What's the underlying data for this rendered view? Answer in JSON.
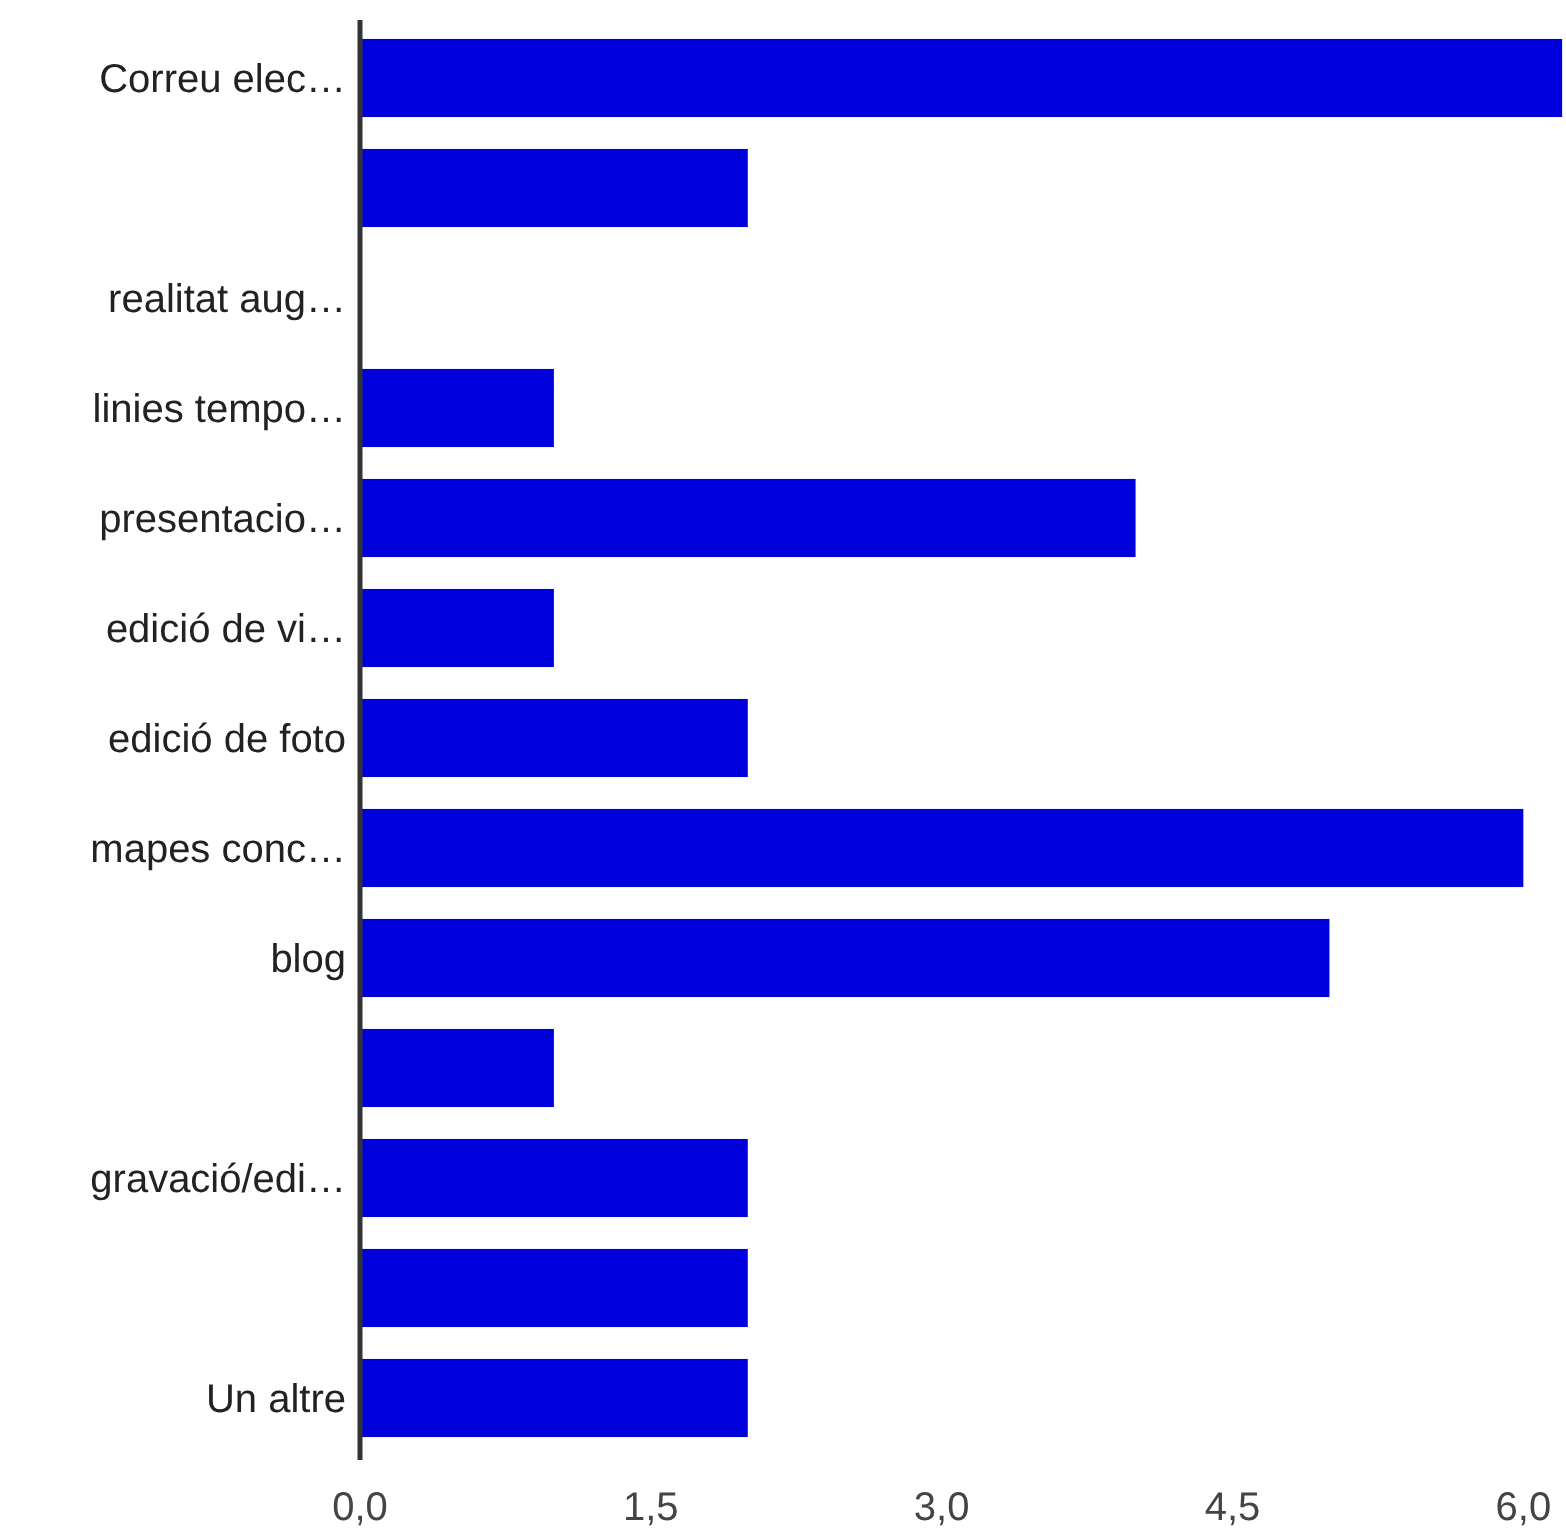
{
  "chart_data": {
    "type": "bar",
    "orientation": "horizontal",
    "categories": [
      "Correu elec…",
      null,
      "realitat aug…",
      "linies tempo…",
      "presentacio…",
      "edició de vi…",
      "edició de foto",
      "mapes conc…",
      "blog",
      null,
      "gravació/edi…",
      null,
      "Un altre"
    ],
    "values": [
      6.2,
      2,
      0,
      1,
      4,
      1,
      2,
      6,
      5,
      1,
      2,
      2,
      2
    ],
    "color": "#0000dd",
    "xlim": [
      0,
      6.22
    ],
    "xticks": [
      {
        "value": 0,
        "label": "0,0"
      },
      {
        "value": 1.5,
        "label": "1,5"
      },
      {
        "value": 3,
        "label": "3,0"
      },
      {
        "value": 4.5,
        "label": "4,5"
      },
      {
        "value": 6,
        "label": "6,0"
      }
    ],
    "grid": false
  }
}
